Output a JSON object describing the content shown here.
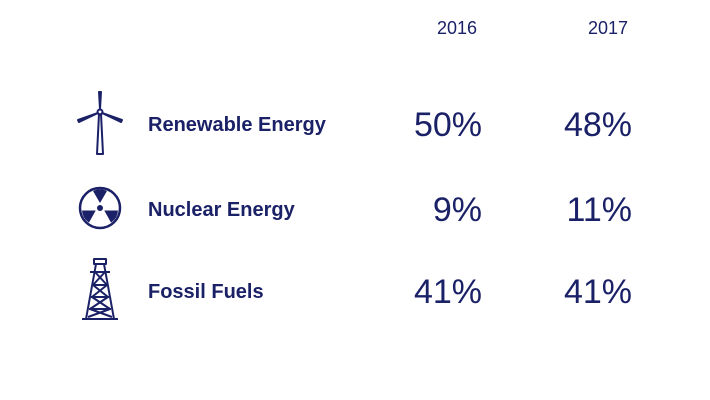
{
  "chart_data": {
    "type": "table",
    "columns": [
      "2016",
      "2017"
    ],
    "rows": [
      {
        "label": "Renewable Energy",
        "icon": "wind-turbine-icon",
        "values": [
          "50%",
          "48%"
        ]
      },
      {
        "label": "Nuclear Energy",
        "icon": "radiation-icon",
        "values": [
          "9%",
          "11%"
        ]
      },
      {
        "label": "Fossil Fuels",
        "icon": "oil-derrick-icon",
        "values": [
          "41%",
          "41%"
        ]
      }
    ]
  },
  "colors": {
    "text": "#1b2167",
    "background": "#ffffff"
  }
}
